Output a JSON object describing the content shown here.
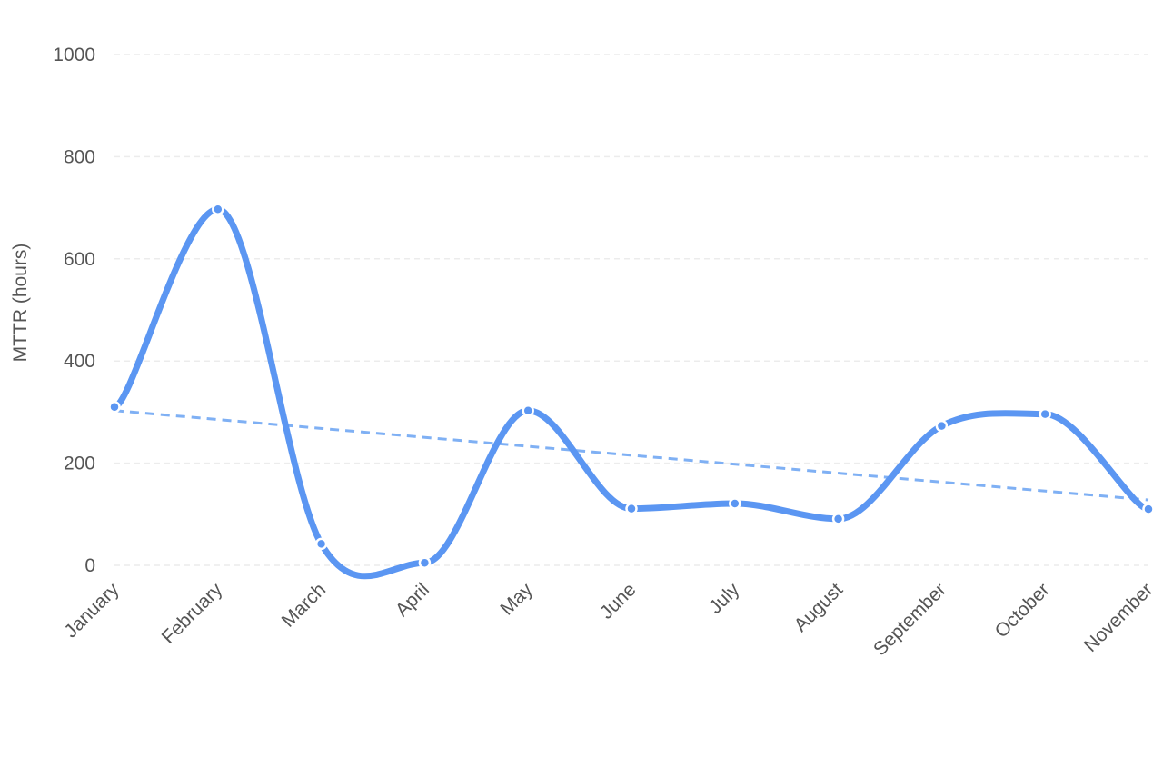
{
  "chart_data": {
    "type": "line",
    "categories": [
      "January",
      "February",
      "March",
      "April",
      "May",
      "June",
      "July",
      "August",
      "September",
      "October",
      "November"
    ],
    "series": [
      {
        "values": [
          310,
          697,
          42,
          5,
          303,
          111,
          121,
          91,
          273,
          296,
          110
        ],
        "color": "#5b96f2"
      }
    ],
    "trendline": {
      "start": 303,
      "end": 128,
      "color": "#7fb0f4",
      "style": "dashed"
    },
    "ylabel": "MTTR (hours)",
    "xlabel": "",
    "ylim": [
      0,
      1000
    ],
    "yticks": [
      0,
      200,
      400,
      600,
      800,
      1000
    ],
    "grid": true,
    "legend": "none"
  }
}
